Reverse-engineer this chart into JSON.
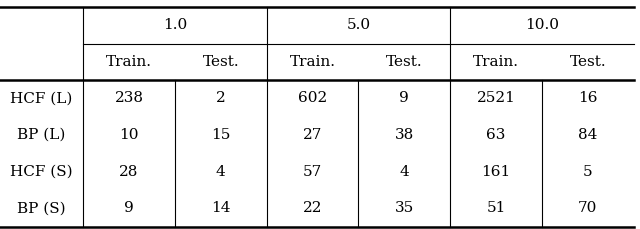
{
  "col_groups": [
    "1.0",
    "5.0",
    "10.0"
  ],
  "sub_cols": [
    "Train.",
    "Test."
  ],
  "row_labels": [
    "HCF (L)",
    "BP (L)",
    "HCF (S)",
    "BP (S)"
  ],
  "data": [
    [
      238,
      2,
      602,
      9,
      2521,
      16
    ],
    [
      10,
      15,
      27,
      38,
      63,
      84
    ],
    [
      28,
      4,
      57,
      4,
      161,
      5
    ],
    [
      9,
      14,
      22,
      35,
      51,
      70
    ]
  ],
  "bg_color": "#ffffff",
  "text_color": "#000000",
  "font_size": 11,
  "header_font_size": 11
}
